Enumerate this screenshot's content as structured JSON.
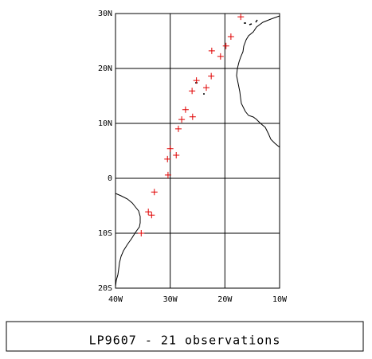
{
  "chart_data": {
    "type": "scatter",
    "title": "LP9607 - 21 observations",
    "x": [
      -17.1,
      -18.9,
      -22.4,
      -19.8,
      -20.8,
      -22.5,
      -25.2,
      -23.4,
      -26.0,
      -27.2,
      -27.9,
      -25.9,
      -28.5,
      -28.9,
      -30.0,
      -30.5,
      -30.4,
      -32.9,
      -34.0,
      -33.4,
      -35.3
    ],
    "values": [
      29.4,
      25.8,
      23.2,
      24.1,
      22.2,
      18.6,
      17.8,
      16.5,
      15.9,
      12.5,
      10.7,
      11.2,
      9.0,
      4.2,
      5.4,
      3.5,
      0.6,
      -2.5,
      -6.1,
      -6.7,
      -10.0
    ],
    "color": "#e00000",
    "xlim": [
      -40,
      -10
    ],
    "ylim": [
      -20,
      30
    ],
    "xticks": [
      {
        "value": -40,
        "label": "40W"
      },
      {
        "value": -30,
        "label": "30W"
      },
      {
        "value": -20,
        "label": "20W"
      },
      {
        "value": -10,
        "label": "10W"
      }
    ],
    "yticks": [
      {
        "value": -20,
        "label": "20S"
      },
      {
        "value": -10,
        "label": "10S"
      },
      0,
      {
        "value": 10,
        "label": "10N"
      },
      {
        "value": 20,
        "label": "20N"
      },
      {
        "value": 30,
        "label": "30N"
      }
    ],
    "grid": true
  }
}
